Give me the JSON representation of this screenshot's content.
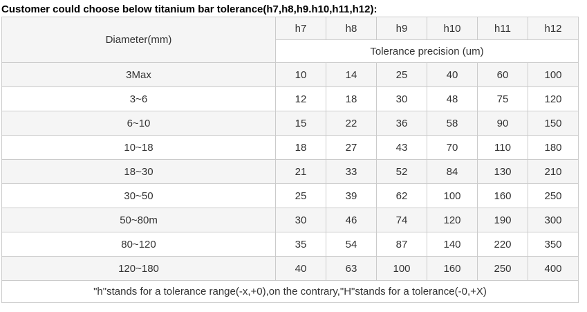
{
  "page": {
    "title": "Customer could choose below titanium bar tolerance(h7,h8,h9.h10,h11,h12):"
  },
  "table": {
    "diameter_header": "Diameter(mm)",
    "tolerance_columns": [
      "h7",
      "h8",
      "h9",
      "h10",
      "h11",
      "h12"
    ],
    "tolerance_subheader": "Tolerance precision (um)",
    "rows": [
      {
        "diameter": "3Max",
        "values": [
          "10",
          "14",
          "25",
          "40",
          "60",
          "100"
        ]
      },
      {
        "diameter": "3~6",
        "values": [
          "12",
          "18",
          "30",
          "48",
          "75",
          "120"
        ]
      },
      {
        "diameter": "6~10",
        "values": [
          "15",
          "22",
          "36",
          "58",
          "90",
          "150"
        ]
      },
      {
        "diameter": "10~18",
        "values": [
          "18",
          "27",
          "43",
          "70",
          "110",
          "180"
        ]
      },
      {
        "diameter": "18~30",
        "values": [
          "21",
          "33",
          "52",
          "84",
          "130",
          "210"
        ]
      },
      {
        "diameter": "30~50",
        "values": [
          "25",
          "39",
          "62",
          "100",
          "160",
          "250"
        ]
      },
      {
        "diameter": "50~80m",
        "values": [
          "30",
          "46",
          "74",
          "120",
          "190",
          "300"
        ]
      },
      {
        "diameter": "80~120",
        "values": [
          "35",
          "54",
          "87",
          "140",
          "220",
          "350"
        ]
      },
      {
        "diameter": "120~180",
        "values": [
          "40",
          "63",
          "100",
          "160",
          "250",
          "400"
        ]
      }
    ],
    "footnote": "\"h\"stands for a tolerance range(-x,+0),on the contrary,\"H\"stands for a tolerance(-0,+X)"
  },
  "colors": {
    "stripe_background": "#f5f5f5",
    "border": "#cbcbcb",
    "text": "#333333",
    "title_text": "#000000"
  }
}
